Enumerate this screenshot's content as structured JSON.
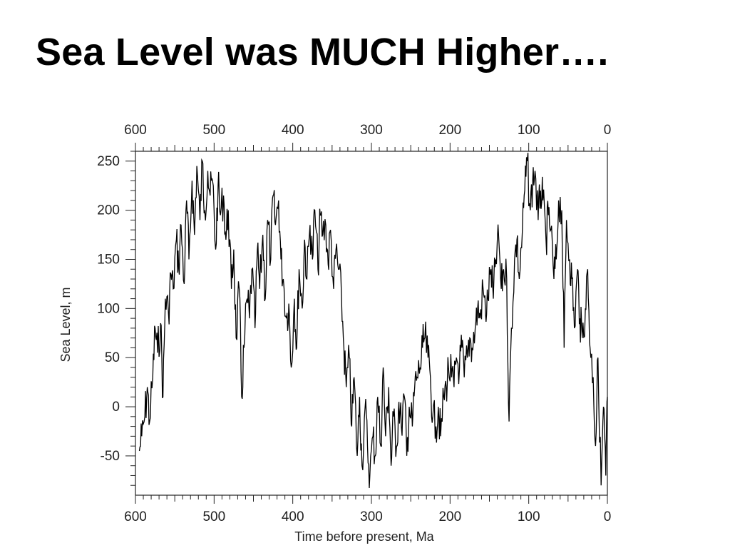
{
  "slide": {
    "title": "Sea Level was MUCH Higher…."
  },
  "chart_data": {
    "type": "line",
    "xlabel": "Time before present, Ma",
    "ylabel": "Sea Level, m",
    "xlim": [
      600,
      0
    ],
    "ylim": [
      -90,
      260
    ],
    "x_ticks": [
      600,
      500,
      400,
      300,
      200,
      100,
      0
    ],
    "y_ticks": [
      250,
      200,
      150,
      100,
      50,
      0,
      -50
    ],
    "top_axis_duplicate": true,
    "grid": false,
    "line_color": "#000000",
    "series": [
      {
        "x": [
          595,
          592,
          588,
          585,
          582,
          578,
          575,
          572,
          568,
          565,
          562,
          558,
          555,
          552,
          548,
          545,
          542,
          538,
          535,
          532,
          528,
          525,
          522,
          518,
          515,
          512,
          508,
          505,
          502,
          498,
          495,
          492,
          488,
          485,
          482,
          478,
          475,
          472,
          468,
          465,
          462,
          458,
          455,
          452,
          448,
          445,
          442,
          438,
          435,
          432,
          428,
          425,
          422,
          418,
          415,
          412,
          408,
          405,
          402,
          398,
          395,
          392,
          388,
          385,
          382,
          378,
          375,
          372,
          368,
          365,
          362,
          358,
          355,
          352,
          348,
          345,
          342,
          338,
          335,
          332,
          328,
          325,
          322,
          318,
          315,
          312,
          308,
          305,
          302,
          298,
          295,
          292,
          288,
          285,
          282,
          278,
          275,
          272,
          268,
          265,
          262,
          258,
          255,
          252,
          248,
          245,
          242,
          238,
          235,
          232,
          228,
          225,
          222,
          218,
          215,
          212,
          208,
          205,
          202,
          198,
          195,
          192,
          188,
          185,
          182,
          178,
          175,
          172,
          168,
          165,
          162,
          158,
          155,
          152,
          148,
          145,
          142,
          138,
          135,
          132,
          128,
          125,
          122,
          118,
          115,
          112,
          108,
          105,
          102,
          98,
          95,
          92,
          88,
          85,
          82,
          78,
          75,
          72,
          68,
          65,
          62,
          58,
          55,
          52,
          48,
          45,
          42,
          38,
          35,
          32,
          28,
          25,
          22,
          18,
          15,
          12,
          8,
          5,
          2,
          0
        ],
        "y": [
          -45,
          -30,
          -10,
          20,
          -15,
          30,
          80,
          55,
          85,
          10,
          110,
          95,
          135,
          120,
          170,
          140,
          185,
          125,
          210,
          150,
          230,
          175,
          245,
          190,
          250,
          200,
          240,
          215,
          230,
          160,
          225,
          195,
          215,
          170,
          200,
          120,
          160,
          70,
          120,
          10,
          60,
          110,
          90,
          140,
          80,
          160,
          120,
          175,
          110,
          190,
          150,
          215,
          185,
          210,
          150,
          130,
          90,
          105,
          40,
          110,
          60,
          140,
          100,
          170,
          130,
          185,
          150,
          200,
          140,
          195,
          175,
          185,
          145,
          180,
          120,
          160,
          140,
          110,
          60,
          20,
          50,
          -20,
          30,
          -50,
          10,
          -60,
          0,
          -40,
          -70,
          -30,
          -50,
          10,
          -40,
          40,
          -30,
          20,
          -60,
          -10,
          -40,
          5,
          -20,
          10,
          -50,
          0,
          -20,
          20,
          30,
          40,
          60,
          70,
          50,
          30,
          -10,
          -20,
          0,
          -30,
          10,
          20,
          40,
          30,
          20,
          50,
          40,
          60,
          30,
          50,
          70,
          60,
          80,
          100,
          90,
          120,
          95,
          110,
          140,
          110,
          150,
          170,
          120,
          140,
          130,
          -15,
          80,
          150,
          170,
          130,
          180,
          220,
          250,
          200,
          230,
          240,
          190,
          220,
          210,
          170,
          195,
          180,
          130,
          150,
          210,
          200,
          60,
          190,
          150,
          130,
          80,
          140,
          90,
          70,
          100,
          140,
          60,
          30,
          -40,
          50,
          -80,
          0,
          -70,
          10
        ]
      }
    ]
  }
}
